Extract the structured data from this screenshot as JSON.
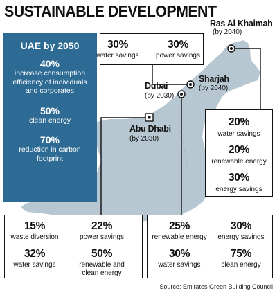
{
  "title": "SUSTAINABLE DEVELOPMENT",
  "uae_panel": {
    "heading": "UAE by 2050",
    "items": [
      {
        "value": "40%",
        "desc": "increase consumption efficiency of individuals and corporates"
      },
      {
        "value": "50%",
        "desc": "clean energy"
      },
      {
        "value": "70%",
        "desc": "reduction in carbon footprint"
      }
    ]
  },
  "cities": {
    "ras_al_khaimah": {
      "name": "Ras Al Khaimah",
      "year": "(by 2040)"
    },
    "sharjah": {
      "name": "Sharjah",
      "year": "(by 2040)"
    },
    "dubai": {
      "name": "Dubai",
      "year": "(by 2030)"
    },
    "abu_dhabi": {
      "name": "Abu Dhabi",
      "year": "(by 2030)"
    }
  },
  "sharjah_box": [
    {
      "value": "30%",
      "desc": "water savings"
    },
    {
      "value": "30%",
      "desc": "power savings"
    }
  ],
  "rak_box": [
    {
      "value": "20%",
      "desc": "water savings"
    },
    {
      "value": "20%",
      "desc": "renewable energy"
    },
    {
      "value": "30%",
      "desc": "energy savings"
    }
  ],
  "abu_dhabi_box": [
    {
      "value": "15%",
      "desc": "waste diversion"
    },
    {
      "value": "22%",
      "desc": "power savings"
    },
    {
      "value": "32%",
      "desc": "water savings"
    },
    {
      "value": "50%",
      "desc": "renewable and clean energy"
    }
  ],
  "dubai_box": [
    {
      "value": "25%",
      "desc": "renewable energy"
    },
    {
      "value": "30%",
      "desc": "energy savings"
    },
    {
      "value": "30%",
      "desc": "water savings"
    },
    {
      "value": "75%",
      "desc": "clean energy"
    }
  ],
  "source": "Source: Emirates Green Building Council",
  "colors": {
    "land": "#b7c7d1",
    "panel": "#2d6b94",
    "line": "#111111"
  }
}
